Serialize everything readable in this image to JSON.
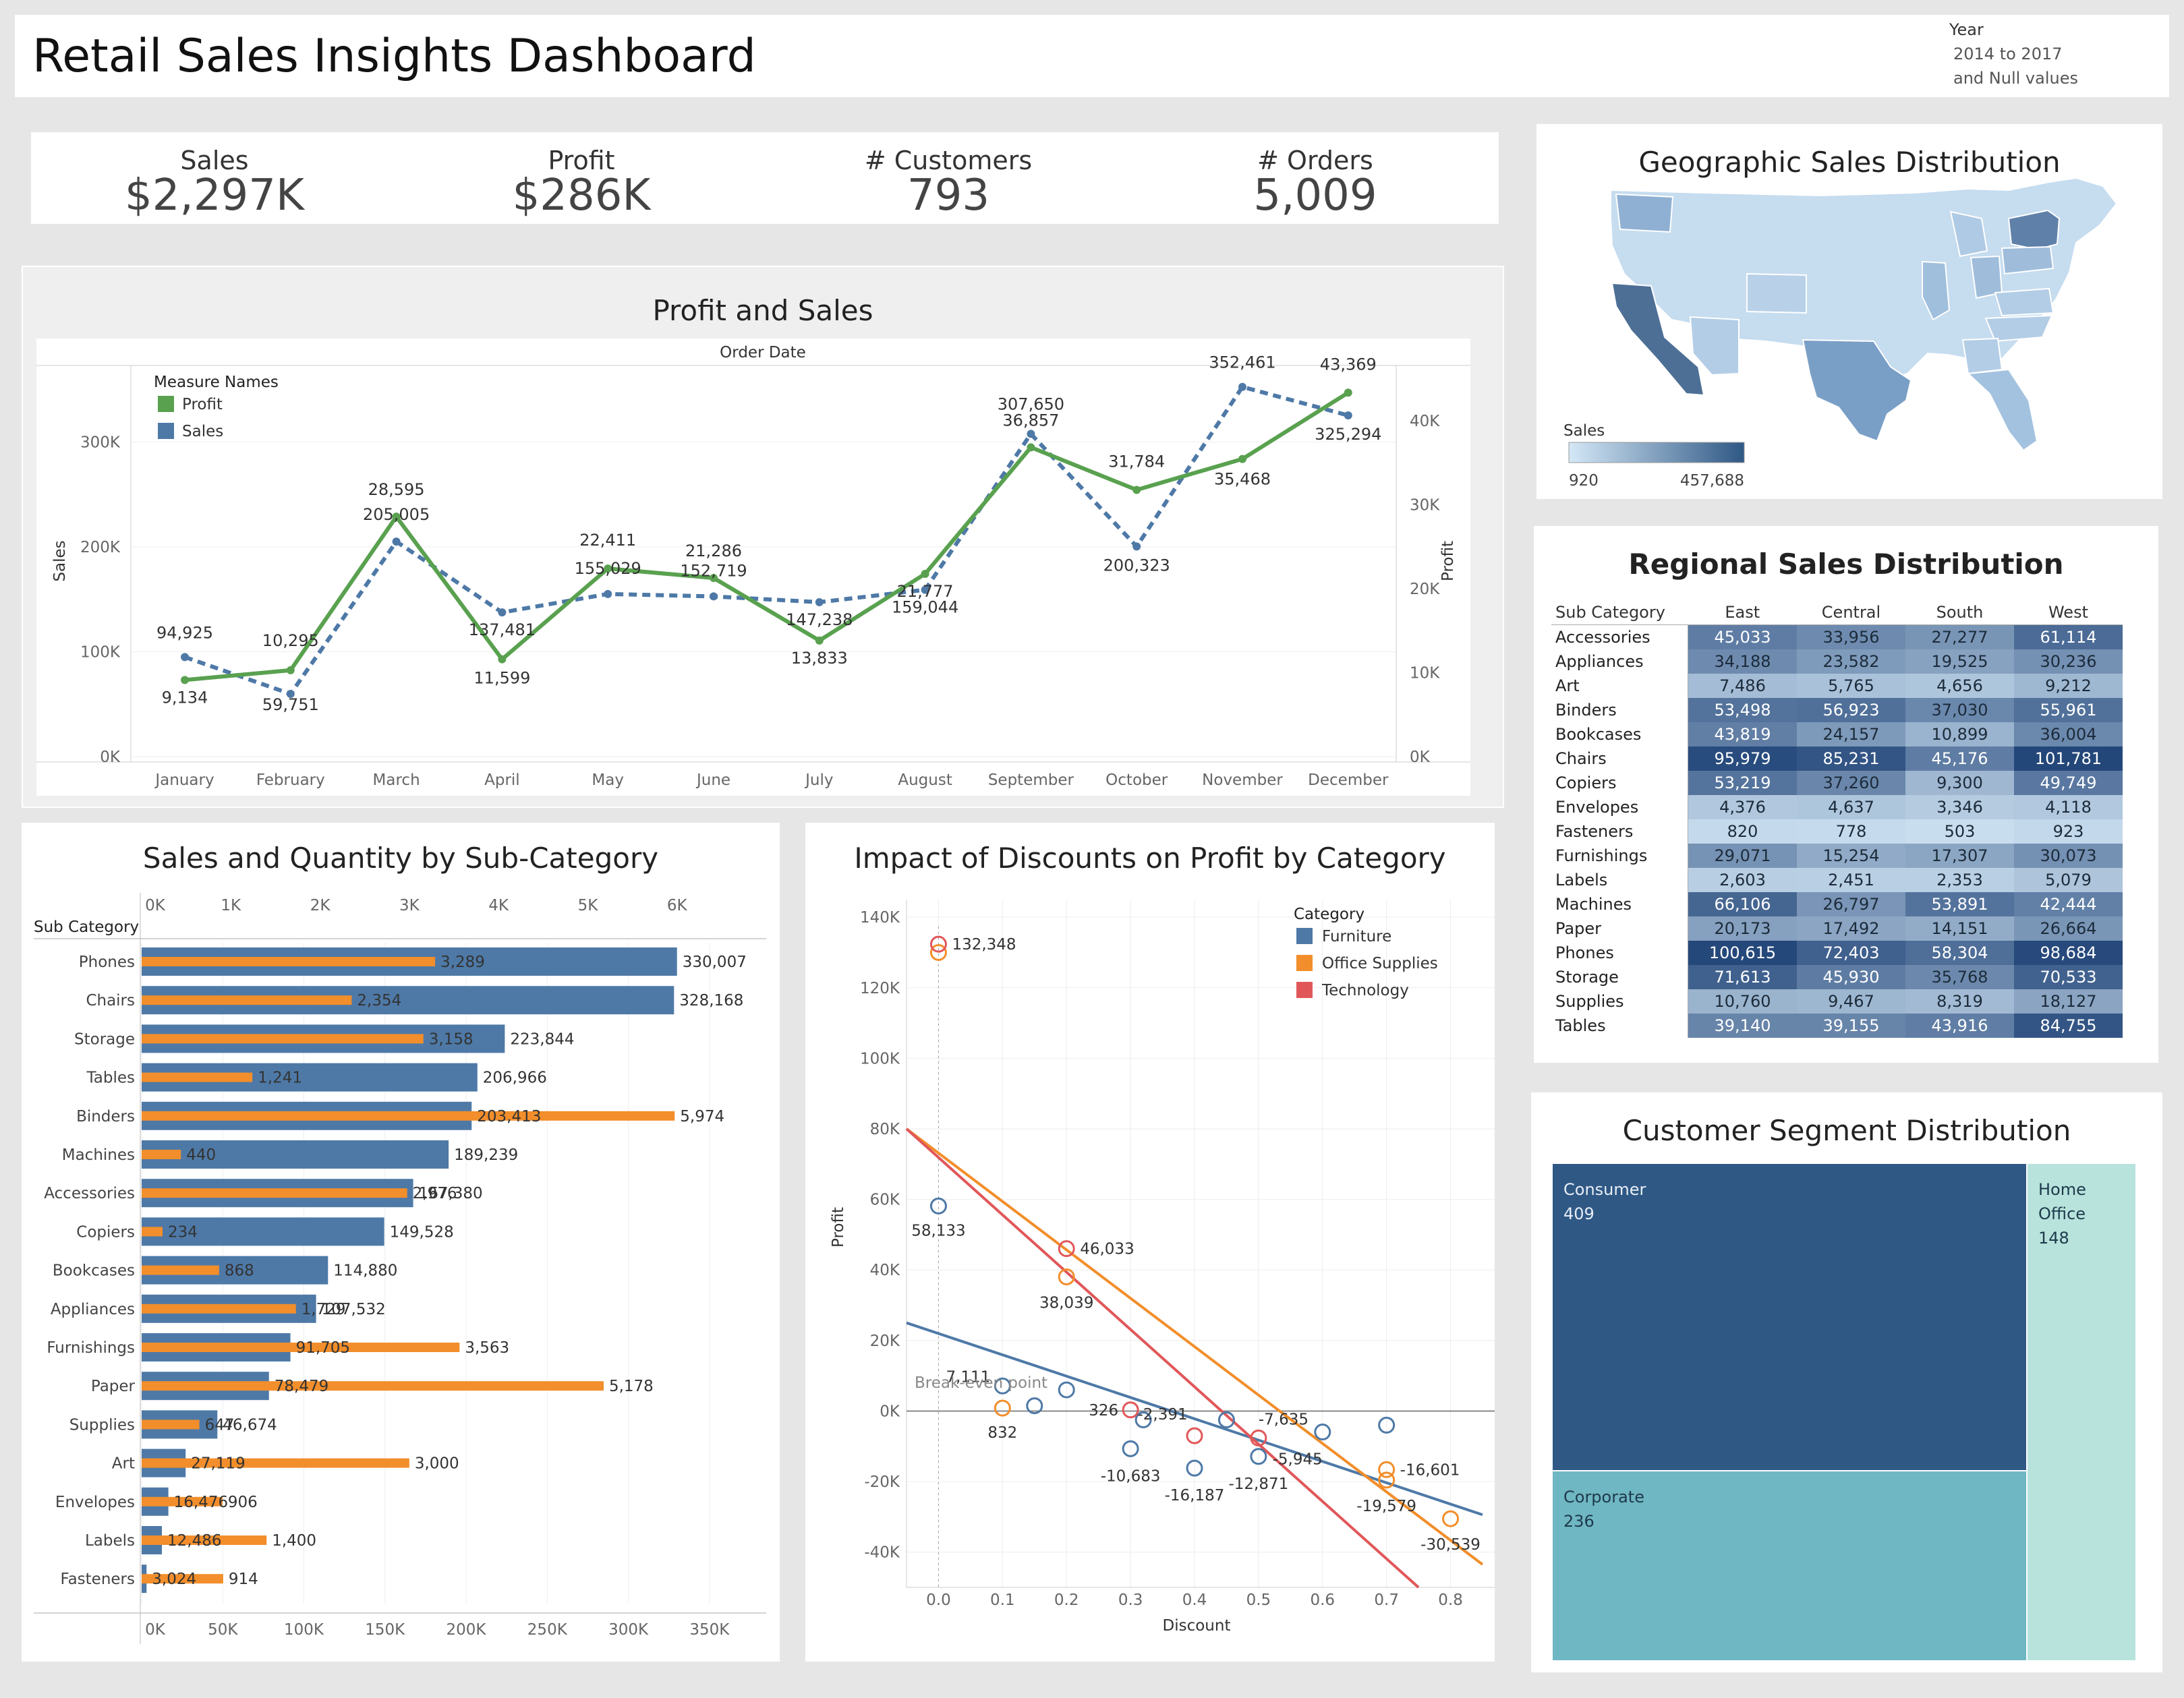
{
  "header": {
    "title": "Retail Sales Insights Dashboard",
    "filter_label": "Year",
    "filter_value_1": "2014 to 2017",
    "filter_value_2": "and Null values"
  },
  "kpis": [
    {
      "label": "Sales",
      "value": "$2,297K"
    },
    {
      "label": "Profit",
      "value": "$286K"
    },
    {
      "label": "# Customers",
      "value": "793"
    },
    {
      "label": "# Orders",
      "value": "5,009"
    }
  ],
  "colors": {
    "profit_green": "#59a14f",
    "sales_blue": "#4e79a7",
    "quantity_orange": "#f28e2b",
    "furniture": "#4e79a7",
    "office_supplies": "#f28e2b",
    "technology": "#e15759"
  },
  "chart_data": [
    {
      "id": "profit_and_sales",
      "type": "line",
      "title": "Profit and Sales",
      "top_label": "Order Date",
      "legend_title": "Measure Names",
      "categories": [
        "January",
        "February",
        "March",
        "April",
        "May",
        "June",
        "July",
        "August",
        "September",
        "October",
        "November",
        "December"
      ],
      "series": [
        {
          "name": "Profit",
          "axis": "right",
          "values": [
            9134,
            10295,
            28595,
            11599,
            22411,
            21286,
            13833,
            21777,
            36857,
            31784,
            35468,
            43369
          ],
          "labels": [
            "9,134",
            "10,295",
            "28,595",
            "11,599",
            "22,411",
            "21,286",
            "13,833",
            "21,777",
            "36,857",
            "31,784",
            "35,468",
            "43,369"
          ]
        },
        {
          "name": "Sales",
          "axis": "left",
          "values": [
            94925,
            59751,
            205005,
            137481,
            155029,
            152719,
            147238,
            159044,
            307650,
            200323,
            352461,
            325294
          ],
          "labels": [
            "94,925",
            "59,751",
            "205,005",
            "137,481",
            "155,029",
            "152,719",
            "147,238",
            "159,044",
            "307,650",
            "200,323",
            "352,461",
            "325,294"
          ]
        }
      ],
      "ylabel_left": "Sales",
      "ylabel_right": "Profit",
      "yticks_left": [
        "0K",
        "100K",
        "200K",
        "300K"
      ],
      "ylim_left": [
        0,
        360000
      ],
      "yticks_right": [
        "0K",
        "10K",
        "20K",
        "30K",
        "40K"
      ],
      "ylim_right": [
        0,
        45000
      ],
      "legend_position": "top-left"
    },
    {
      "id": "sales_quantity_subcategory",
      "type": "bar",
      "title": "Sales and Quantity by Sub-Category",
      "row_header": "Sub Category",
      "categories": [
        "Phones",
        "Chairs",
        "Storage",
        "Tables",
        "Binders",
        "Machines",
        "Accessories",
        "Copiers",
        "Bookcases",
        "Appliances",
        "Furnishings",
        "Paper",
        "Supplies",
        "Art",
        "Envelopes",
        "Labels",
        "Fasteners"
      ],
      "series": [
        {
          "name": "Sales",
          "axis": "bottom",
          "values": [
            330007,
            328168,
            223844,
            206966,
            203413,
            189239,
            167380,
            149528,
            114880,
            107532,
            91705,
            78479,
            46674,
            27119,
            16476,
            12486,
            3024
          ],
          "labels": [
            "330,007",
            "328,168",
            "223,844",
            "206,966",
            "203,413",
            "189,239",
            "167,380",
            "149,528",
            "114,880",
            "107,532",
            "91,705",
            "78,479",
            "46,674",
            "27,119",
            "16,476",
            "12,486",
            "3,024"
          ]
        },
        {
          "name": "Quantity",
          "axis": "top",
          "values": [
            3289,
            2354,
            3158,
            1241,
            5974,
            440,
            2976,
            234,
            868,
            1729,
            3563,
            5178,
            647,
            3000,
            906,
            1400,
            914
          ],
          "labels": [
            "3,289",
            "2,354",
            "3,158",
            "1,241",
            "5,974",
            "440",
            "2,976",
            "234",
            "868",
            "1,729",
            "3,563",
            "5,178",
            "647",
            "3,000",
            "906",
            "1,400",
            "914"
          ]
        }
      ],
      "xticks_top": [
        "0K",
        "1K",
        "2K",
        "3K",
        "4K",
        "5K",
        "6K"
      ],
      "xlim_top": [
        0,
        7000
      ],
      "xticks_bottom": [
        "0K",
        "50K",
        "100K",
        "150K",
        "200K",
        "250K",
        "300K",
        "350K"
      ],
      "xlim_bottom": [
        0,
        385000
      ]
    },
    {
      "id": "discount_profit",
      "type": "scatter",
      "title": "Impact of Discounts on Profit by Category",
      "xlabel": "Discount",
      "ylabel": "Profit",
      "legend_title": "Category",
      "legend_position": "top-right",
      "xticks": [
        "0.0",
        "0.1",
        "0.2",
        "0.3",
        "0.4",
        "0.5",
        "0.6",
        "0.7",
        "0.8"
      ],
      "xlim": [
        -0.05,
        0.85
      ],
      "yticks": [
        "-40K",
        "-20K",
        "0K",
        "20K",
        "40K",
        "60K",
        "80K",
        "100K",
        "120K",
        "140K"
      ],
      "ylim": [
        -50000,
        145000
      ],
      "reference_line_label": "Break-even point",
      "series": [
        {
          "name": "Furniture",
          "points": [
            [
              0.0,
              58133,
              "58,133"
            ],
            [
              0.1,
              7111,
              "7,111"
            ],
            [
              0.15,
              1500,
              ""
            ],
            [
              0.2,
              6000,
              ""
            ],
            [
              0.3,
              -10683,
              "-10,683"
            ],
            [
              0.32,
              -2500,
              ""
            ],
            [
              0.4,
              -16187,
              "-16,187"
            ],
            [
              0.45,
              -2500,
              ""
            ],
            [
              0.5,
              -12871,
              "-12,871"
            ],
            [
              0.6,
              -5945,
              "-5,945"
            ],
            [
              0.7,
              -4000,
              ""
            ]
          ],
          "trend": [
            [
              -0.05,
              25000
            ],
            [
              0.85,
              -29400
            ]
          ]
        },
        {
          "name": "Office Supplies",
          "points": [
            [
              0.0,
              130000,
              ""
            ],
            [
              0.1,
              832,
              "832"
            ],
            [
              0.2,
              38039,
              "38,039"
            ],
            [
              0.7,
              -16601,
              "-16,601"
            ],
            [
              0.7,
              -19579,
              "-19,579"
            ],
            [
              0.8,
              -30539,
              "-30,539"
            ]
          ],
          "trend": [
            [
              -0.05,
              80000
            ],
            [
              0.85,
              -43500
            ]
          ]
        },
        {
          "name": "Technology",
          "points": [
            [
              0.0,
              132348,
              "132,348"
            ],
            [
              0.2,
              46033,
              "46,033"
            ],
            [
              0.3,
              326,
              "326"
            ],
            [
              0.4,
              -7000,
              ""
            ],
            [
              0.5,
              -7635,
              "-7,635"
            ]
          ],
          "extra_labels": [
            [
              0.35,
              -2391,
              "-2,391"
            ]
          ],
          "trend": [
            [
              -0.05,
              80000
            ],
            [
              0.75,
              -50000
            ]
          ]
        }
      ]
    },
    {
      "id": "geographic_sales",
      "type": "heatmap",
      "title": "Geographic Sales Distribution",
      "legend_title": "Sales",
      "legend_min": "920",
      "legend_max": "457,688"
    },
    {
      "id": "regional_sales",
      "type": "table",
      "title": "Regional Sales Distribution",
      "row_header": "Sub Category",
      "columns": [
        "East",
        "Central",
        "South",
        "West"
      ],
      "rows": [
        {
          "name": "Accessories",
          "values": [
            45033,
            33956,
            27277,
            61114
          ],
          "labels": [
            "45,033",
            "33,956",
            "27,277",
            "61,114"
          ]
        },
        {
          "name": "Appliances",
          "values": [
            34188,
            23582,
            19525,
            30236
          ],
          "labels": [
            "34,188",
            "23,582",
            "19,525",
            "30,236"
          ]
        },
        {
          "name": "Art",
          "values": [
            7486,
            5765,
            4656,
            9212
          ],
          "labels": [
            "7,486",
            "5,765",
            "4,656",
            "9,212"
          ]
        },
        {
          "name": "Binders",
          "values": [
            53498,
            56923,
            37030,
            55961
          ],
          "labels": [
            "53,498",
            "56,923",
            "37,030",
            "55,961"
          ]
        },
        {
          "name": "Bookcases",
          "values": [
            43819,
            24157,
            10899,
            36004
          ],
          "labels": [
            "43,819",
            "24,157",
            "10,899",
            "36,004"
          ]
        },
        {
          "name": "Chairs",
          "values": [
            95979,
            85231,
            45176,
            101781
          ],
          "labels": [
            "95,979",
            "85,231",
            "45,176",
            "101,781"
          ]
        },
        {
          "name": "Copiers",
          "values": [
            53219,
            37260,
            9300,
            49749
          ],
          "labels": [
            "53,219",
            "37,260",
            "9,300",
            "49,749"
          ]
        },
        {
          "name": "Envelopes",
          "values": [
            4376,
            4637,
            3346,
            4118
          ],
          "labels": [
            "4,376",
            "4,637",
            "3,346",
            "4,118"
          ]
        },
        {
          "name": "Fasteners",
          "values": [
            820,
            778,
            503,
            923
          ],
          "labels": [
            "820",
            "778",
            "503",
            "923"
          ]
        },
        {
          "name": "Furnishings",
          "values": [
            29071,
            15254,
            17307,
            30073
          ],
          "labels": [
            "29,071",
            "15,254",
            "17,307",
            "30,073"
          ]
        },
        {
          "name": "Labels",
          "values": [
            2603,
            2451,
            2353,
            5079
          ],
          "labels": [
            "2,603",
            "2,451",
            "2,353",
            "5,079"
          ]
        },
        {
          "name": "Machines",
          "values": [
            66106,
            26797,
            53891,
            42444
          ],
          "labels": [
            "66,106",
            "26,797",
            "53,891",
            "42,444"
          ]
        },
        {
          "name": "Paper",
          "values": [
            20173,
            17492,
            14151,
            26664
          ],
          "labels": [
            "20,173",
            "17,492",
            "14,151",
            "26,664"
          ]
        },
        {
          "name": "Phones",
          "values": [
            100615,
            72403,
            58304,
            98684
          ],
          "labels": [
            "100,615",
            "72,403",
            "58,304",
            "98,684"
          ]
        },
        {
          "name": "Storage",
          "values": [
            71613,
            45930,
            35768,
            70533
          ],
          "labels": [
            "71,613",
            "45,930",
            "35,768",
            "70,533"
          ]
        },
        {
          "name": "Supplies",
          "values": [
            10760,
            9467,
            8319,
            18127
          ],
          "labels": [
            "10,760",
            "9,467",
            "8,319",
            "18,127"
          ]
        },
        {
          "name": "Tables",
          "values": [
            39140,
            39155,
            43916,
            84755
          ],
          "labels": [
            "39,140",
            "39,155",
            "43,916",
            "84,755"
          ]
        }
      ]
    },
    {
      "id": "customer_segment",
      "type": "heatmap",
      "title": "Customer Segment Distribution",
      "segments": [
        {
          "name": "Consumer",
          "value": 409,
          "color": "#2f5885"
        },
        {
          "name": "Corporate",
          "value": 236,
          "color": "#6fb7c3"
        },
        {
          "name": "Home Office",
          "value": 148,
          "color": "#b8e3dc"
        }
      ]
    }
  ]
}
